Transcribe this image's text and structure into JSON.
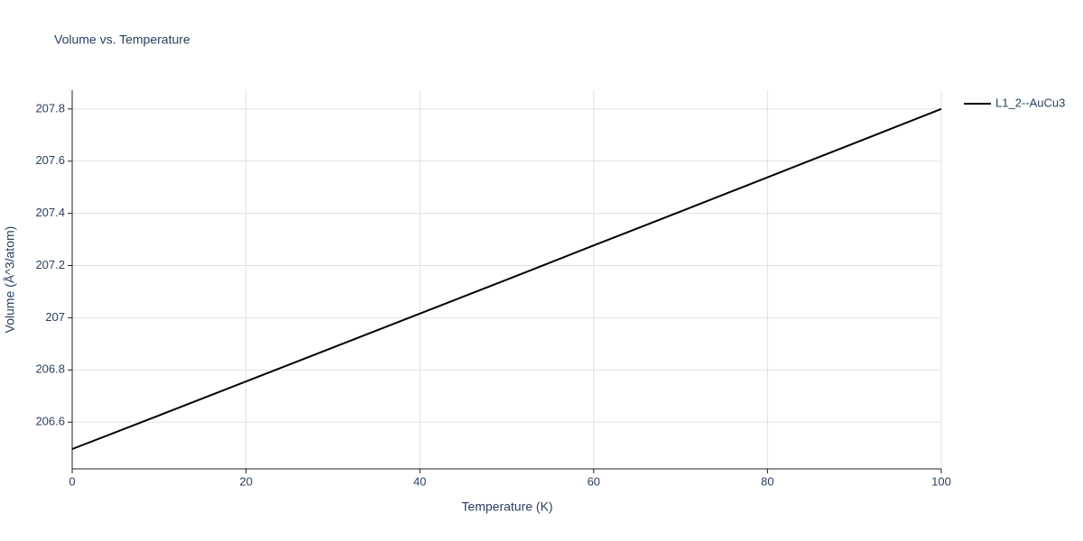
{
  "chart_data": {
    "type": "line",
    "title": "Volume vs. Temperature",
    "x_label": "Temperature (K)",
    "y_label": "Volume (Å^3/atom)",
    "x": [
      0,
      10,
      20,
      30,
      40,
      50,
      60,
      70,
      80,
      90,
      100
    ],
    "series": [
      {
        "name": "L1_2--AuCu3",
        "color": "#000000",
        "values": [
          206.497,
          206.626,
          206.756,
          206.886,
          207.016,
          207.146,
          207.277,
          207.407,
          207.538,
          207.669,
          207.8
        ]
      }
    ],
    "xlim": [
      0,
      100
    ],
    "xticks": [
      0,
      20,
      40,
      60,
      80,
      100
    ],
    "ylim": [
      206.421,
      207.872
    ],
    "yticks": [
      206.6,
      206.8,
      207,
      207.2,
      207.4,
      207.6,
      207.8
    ],
    "grid": true,
    "legend": "right"
  }
}
